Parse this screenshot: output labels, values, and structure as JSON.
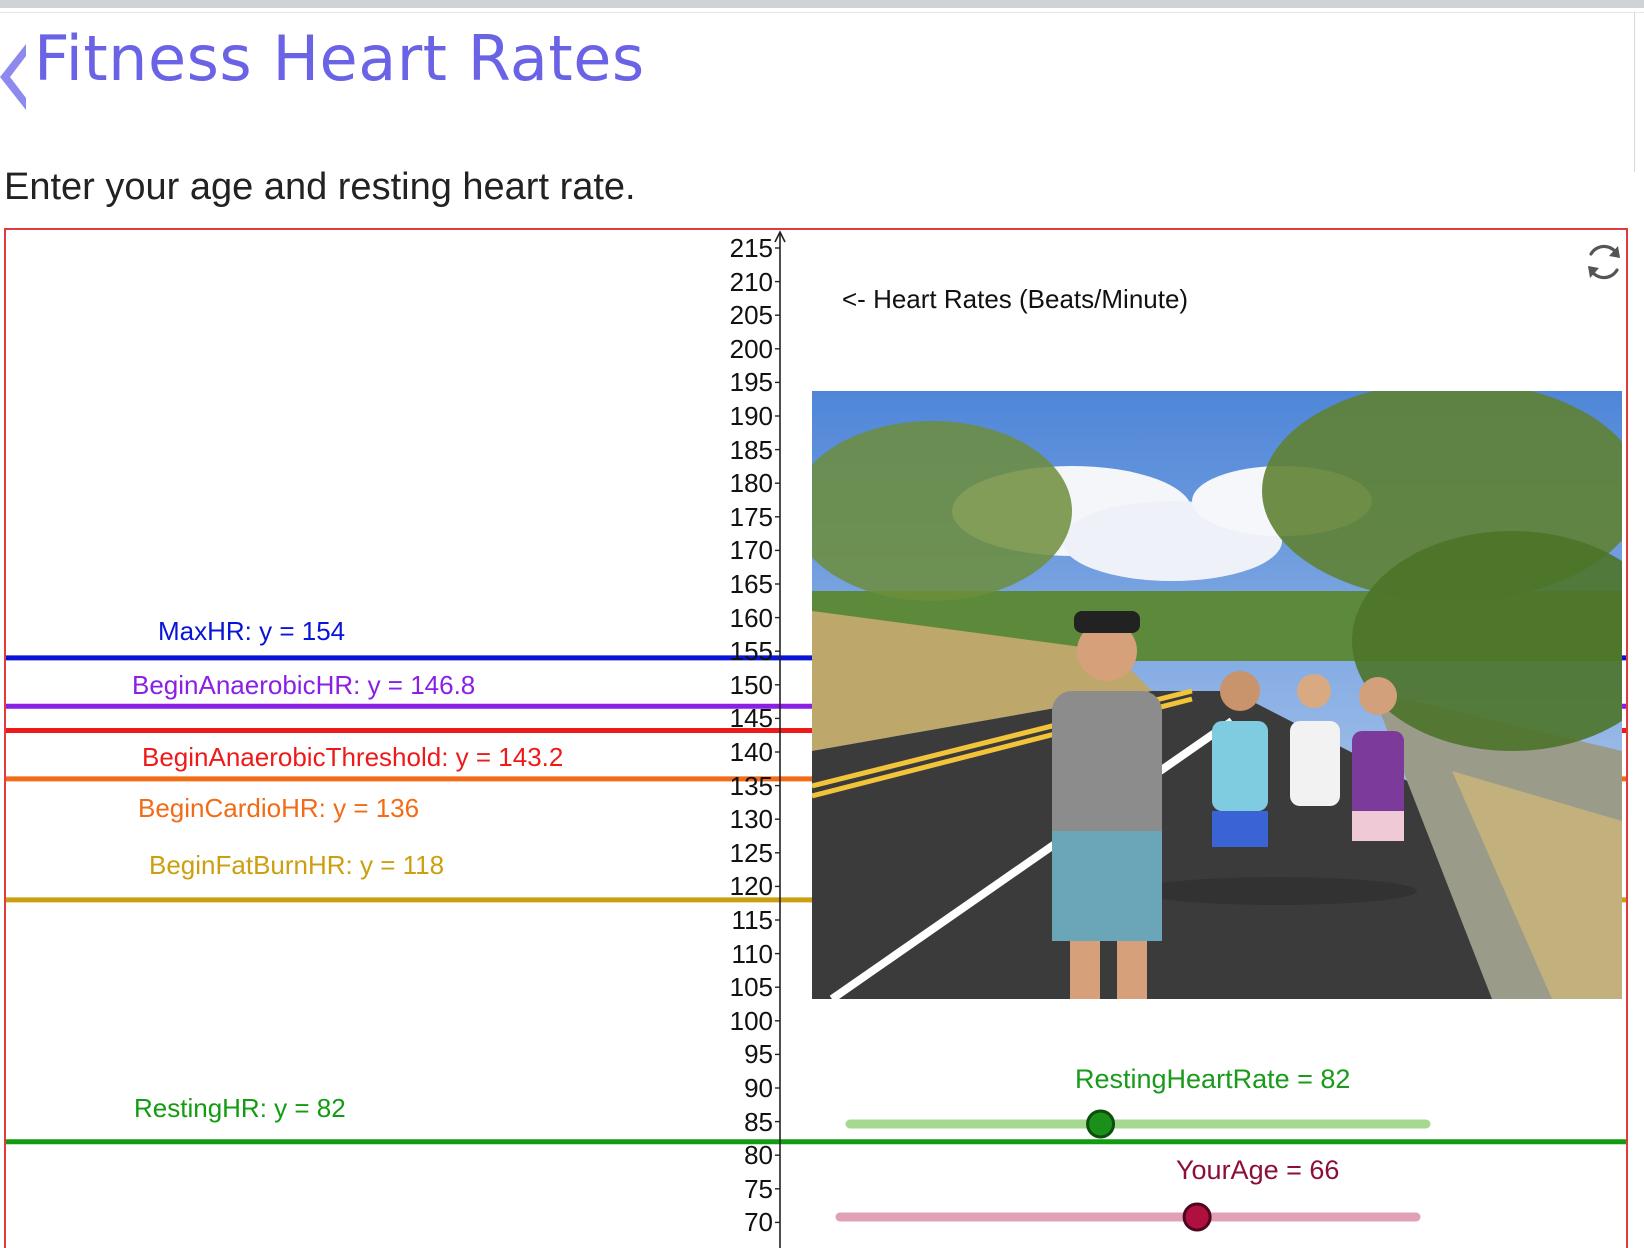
{
  "page": {
    "title": "Fitness Heart Rates",
    "instructions": "Enter your age and resting heart rate."
  },
  "graph": {
    "axis_title": "<- Heart Rates (Beats/Minute)",
    "ticks": [
      "215",
      "210",
      "205",
      "200",
      "195",
      "190",
      "185",
      "180",
      "175",
      "170",
      "165",
      "160",
      "155",
      "150",
      "145",
      "140",
      "135",
      "130",
      "125",
      "120",
      "115",
      "110",
      "105",
      "100",
      "95",
      "90",
      "85",
      "80",
      "75",
      "70"
    ],
    "lines": [
      {
        "label": "MaxHR: y = 154",
        "value": 154,
        "color": "#0a14d6"
      },
      {
        "label": "BeginAnaerobicHR: y = 146.8",
        "value": 146.8,
        "color": "#8a1fe6"
      },
      {
        "label": "BeginAnaerobicThreshold: y = 143.2",
        "value": 143.2,
        "color": "#ee1a1a"
      },
      {
        "label": "BeginCardioHR: y = 136",
        "value": 136,
        "color": "#f26b17"
      },
      {
        "label": "BeginFatBurnHR: y = 118",
        "value": 118,
        "color": "#cc9f10"
      },
      {
        "label": "RestingHR: y = 82",
        "value": 82,
        "color": "#129c12"
      }
    ]
  },
  "sliders": {
    "resting": {
      "label": "RestingHeartRate = 82",
      "value": 82,
      "fraction": 0.435,
      "color": "#1a9a1a",
      "track_color": "#a6d98f",
      "knob_color": "#1a8f1a"
    },
    "age": {
      "label": "YourAge = 66",
      "value": 66,
      "fraction": 0.62,
      "color": "#8b0f3a",
      "track_color": "#e0a0b6",
      "knob_color": "#b0103f"
    }
  },
  "photo": {
    "icon": "hikers-photo"
  },
  "icons": {
    "reset": "refresh-icon",
    "back": "chevron-left-icon"
  }
}
